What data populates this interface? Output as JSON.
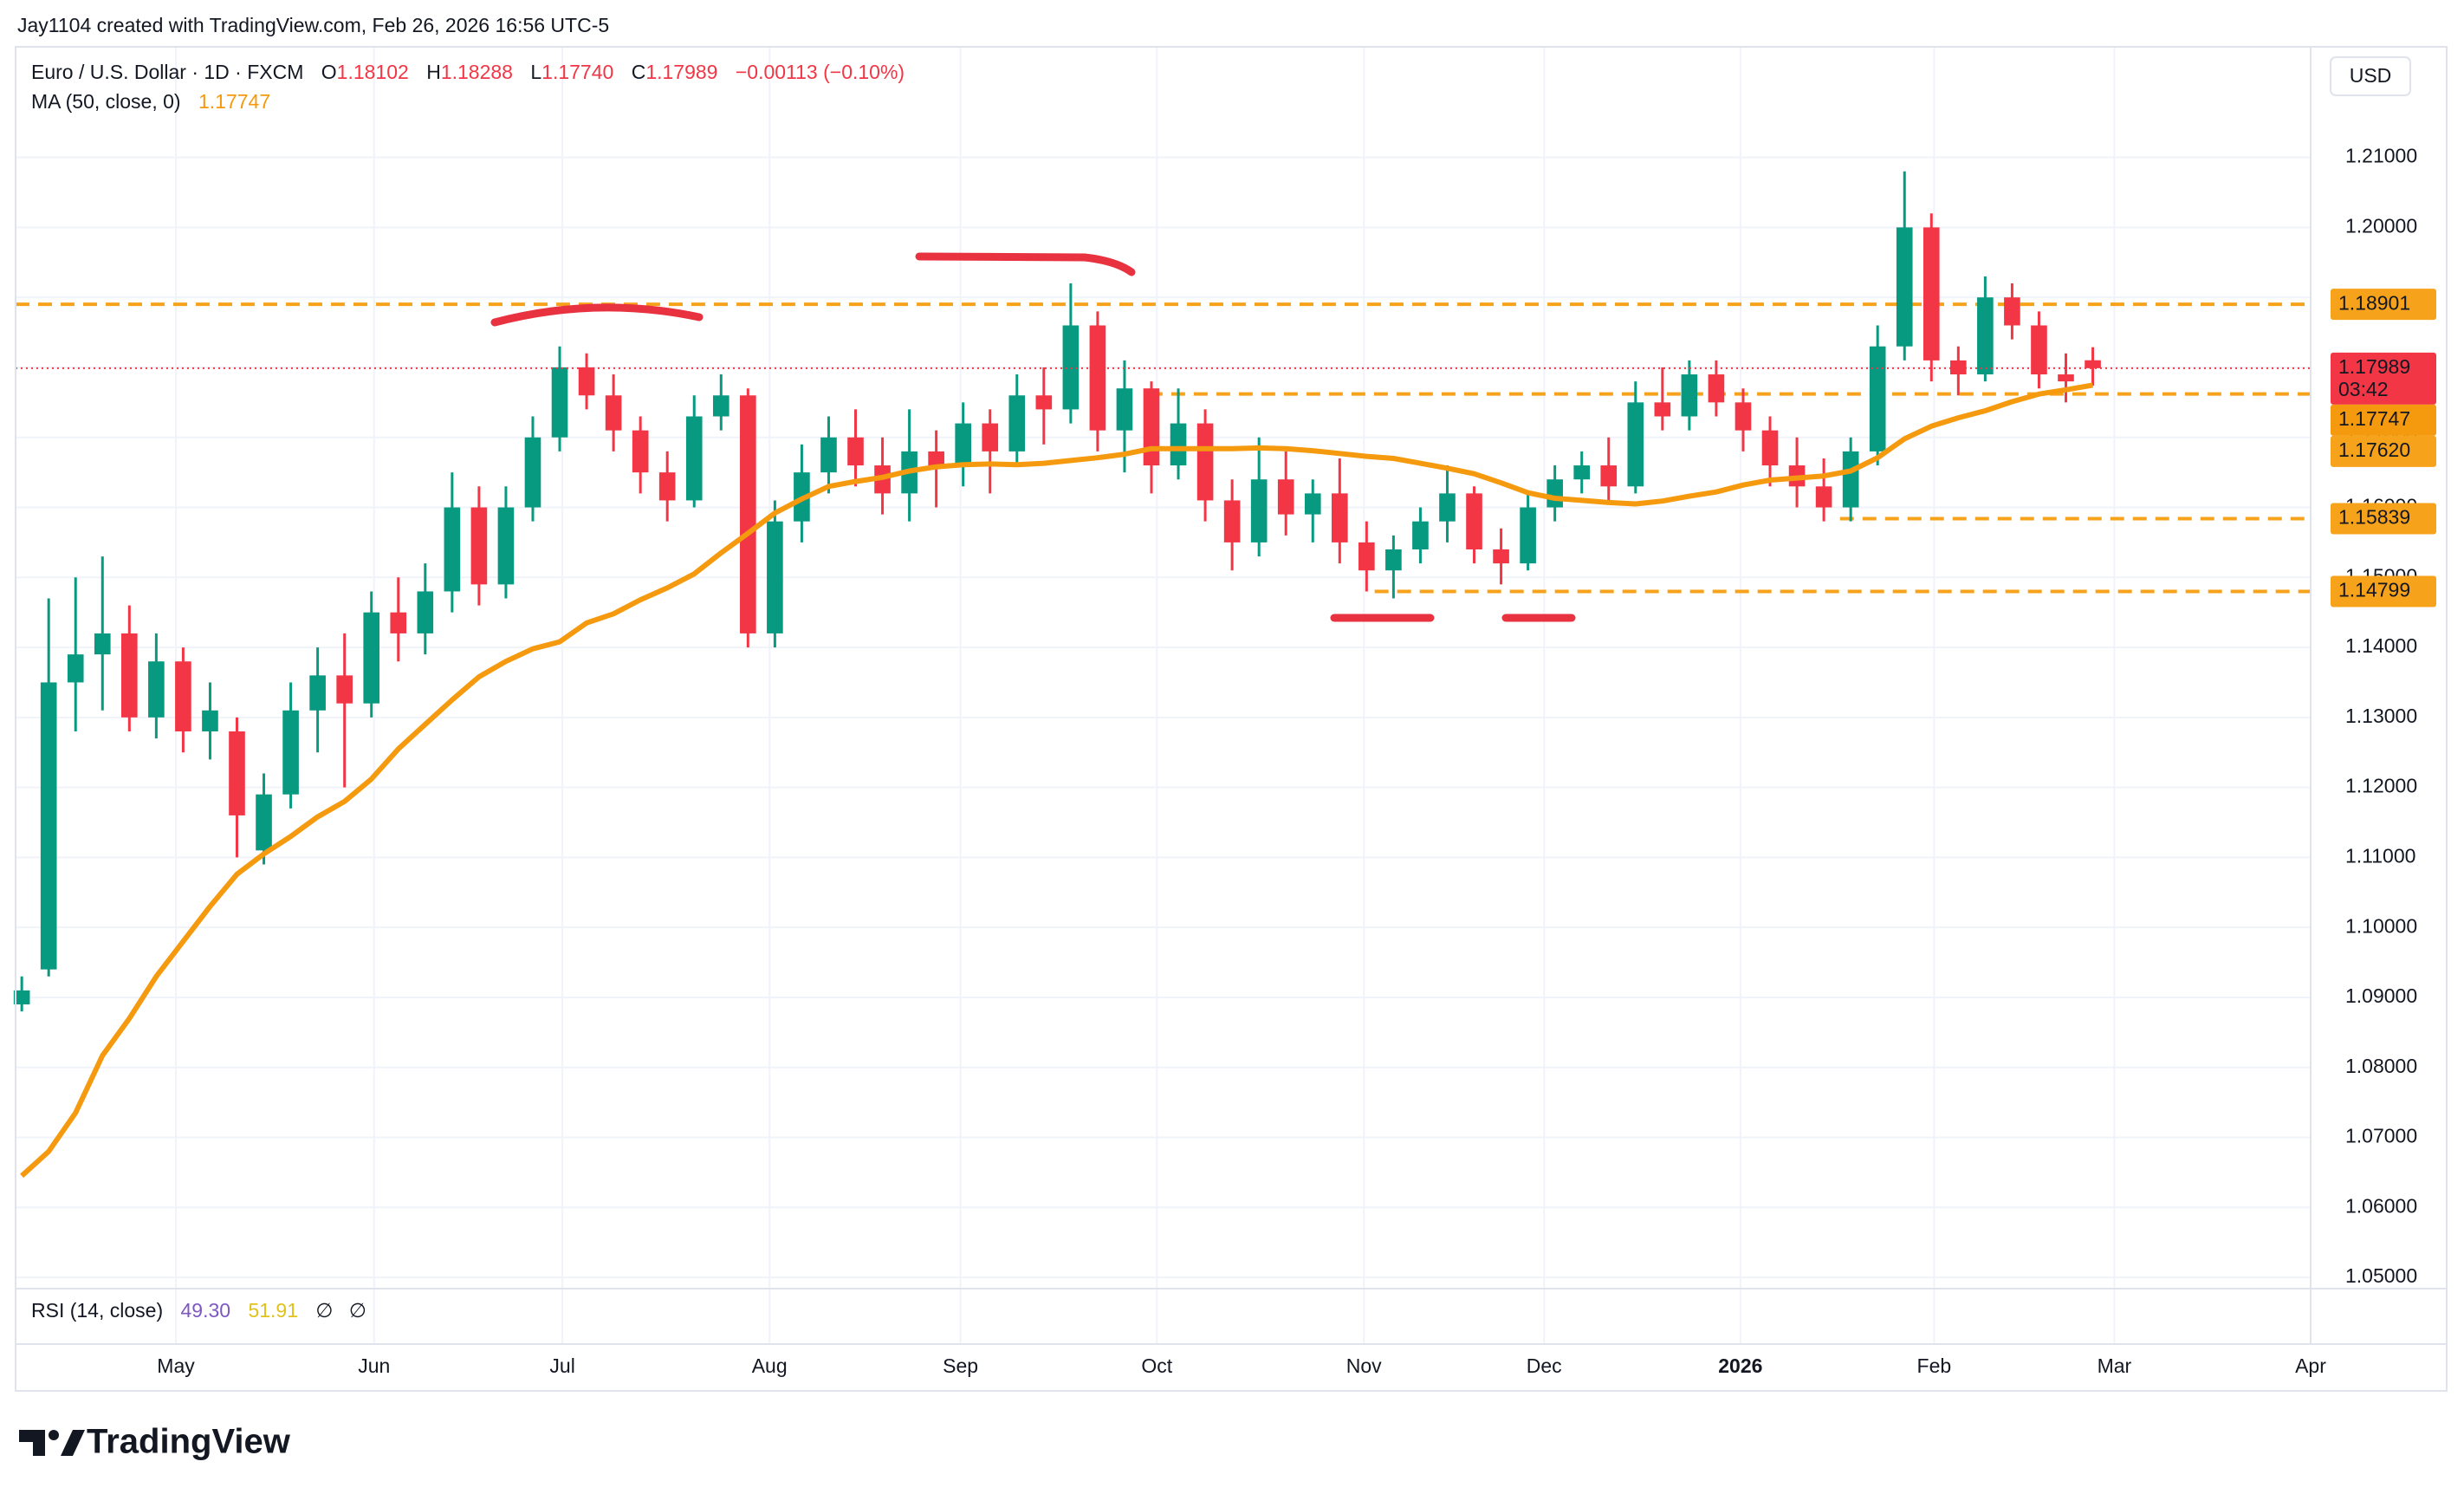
{
  "header": {
    "attribution": "Jay1104 created with TradingView.com, Feb 26, 2026 16:56 UTC-5",
    "symbol": "Euro / U.S. Dollar · 1D · FXCM",
    "ohlc": [
      {
        "key": "O",
        "value": "1.18102"
      },
      {
        "key": "H",
        "value": "1.18288"
      },
      {
        "key": "L",
        "value": "1.17740"
      },
      {
        "key": "C",
        "value": "1.17989"
      }
    ],
    "change": "−0.00113 (−0.10%)",
    "ma_label": "MA (50, close, 0)",
    "rsi_label": "RSI (14, close)",
    "rsi_values": [
      "49.30",
      "51.91"
    ],
    "rsi_flags": [
      "∅",
      "∅"
    ],
    "currency": "USD",
    "countdown": "03:42",
    "logo": "TradingView"
  },
  "chart_data": {
    "type": "candlestick",
    "up_color": "#089981",
    "down_color": "#f23645",
    "open": [
      1.089,
      1.094,
      1.135,
      1.139,
      1.142,
      1.13,
      1.138,
      1.128,
      1.128,
      1.111,
      1.119,
      1.131,
      1.136,
      1.132,
      1.145,
      1.142,
      1.148,
      1.16,
      1.149,
      1.16,
      1.17,
      1.18,
      1.176,
      1.171,
      1.165,
      1.161,
      1.173,
      1.176,
      1.142,
      1.158,
      1.165,
      1.17,
      1.166,
      1.162,
      1.168,
      1.166,
      1.172,
      1.168,
      1.176,
      1.174,
      1.186,
      1.171,
      1.177,
      1.166,
      1.172,
      1.161,
      1.155,
      1.164,
      1.159,
      1.162,
      1.155,
      1.151,
      1.154,
      1.158,
      1.162,
      1.154,
      1.152,
      1.16,
      1.164,
      1.166,
      1.163,
      1.175,
      1.173,
      1.179,
      1.175,
      1.171,
      1.166,
      1.163,
      1.16,
      1.168,
      1.183,
      1.2,
      1.181,
      1.179,
      1.19,
      1.186,
      1.179,
      1.18102
    ],
    "high": [
      1.093,
      1.147,
      1.15,
      1.153,
      1.146,
      1.142,
      1.14,
      1.135,
      1.13,
      1.122,
      1.135,
      1.14,
      1.142,
      1.148,
      1.15,
      1.152,
      1.165,
      1.163,
      1.163,
      1.173,
      1.183,
      1.182,
      1.179,
      1.173,
      1.168,
      1.176,
      1.179,
      1.177,
      1.161,
      1.169,
      1.173,
      1.174,
      1.17,
      1.174,
      1.171,
      1.175,
      1.174,
      1.179,
      1.18,
      1.192,
      1.188,
      1.181,
      1.178,
      1.177,
      1.174,
      1.164,
      1.17,
      1.168,
      1.164,
      1.167,
      1.158,
      1.156,
      1.16,
      1.166,
      1.163,
      1.157,
      1.162,
      1.166,
      1.168,
      1.17,
      1.178,
      1.18,
      1.181,
      1.181,
      1.177,
      1.173,
      1.17,
      1.167,
      1.17,
      1.186,
      1.208,
      1.202,
      1.183,
      1.193,
      1.192,
      1.188,
      1.182,
      1.18288
    ],
    "low": [
      1.088,
      1.093,
      1.128,
      1.131,
      1.128,
      1.127,
      1.125,
      1.124,
      1.11,
      1.109,
      1.117,
      1.125,
      1.12,
      1.13,
      1.138,
      1.139,
      1.145,
      1.146,
      1.147,
      1.158,
      1.168,
      1.174,
      1.168,
      1.162,
      1.158,
      1.16,
      1.171,
      1.14,
      1.14,
      1.155,
      1.162,
      1.163,
      1.159,
      1.158,
      1.16,
      1.163,
      1.162,
      1.166,
      1.169,
      1.172,
      1.168,
      1.165,
      1.162,
      1.164,
      1.158,
      1.151,
      1.153,
      1.156,
      1.155,
      1.152,
      1.148,
      1.147,
      1.152,
      1.155,
      1.152,
      1.149,
      1.151,
      1.158,
      1.162,
      1.161,
      1.162,
      1.171,
      1.171,
      1.173,
      1.168,
      1.163,
      1.16,
      1.158,
      1.158,
      1.166,
      1.181,
      1.178,
      1.176,
      1.178,
      1.184,
      1.177,
      1.175,
      1.1774
    ],
    "close": [
      1.091,
      1.135,
      1.139,
      1.142,
      1.13,
      1.138,
      1.128,
      1.131,
      1.116,
      1.119,
      1.131,
      1.136,
      1.132,
      1.145,
      1.142,
      1.148,
      1.16,
      1.149,
      1.16,
      1.17,
      1.18,
      1.176,
      1.171,
      1.165,
      1.161,
      1.173,
      1.176,
      1.142,
      1.158,
      1.165,
      1.17,
      1.166,
      1.162,
      1.168,
      1.166,
      1.172,
      1.168,
      1.176,
      1.174,
      1.186,
      1.171,
      1.177,
      1.166,
      1.172,
      1.161,
      1.155,
      1.164,
      1.159,
      1.162,
      1.155,
      1.151,
      1.154,
      1.158,
      1.162,
      1.154,
      1.152,
      1.16,
      1.164,
      1.166,
      1.163,
      1.175,
      1.173,
      1.179,
      1.175,
      1.171,
      1.166,
      1.163,
      1.16,
      1.168,
      1.183,
      1.2,
      1.181,
      1.179,
      1.19,
      1.186,
      1.179,
      1.178,
      1.17989
    ],
    "ma": {
      "color": "#f59a0e",
      "values": [
        1.0645,
        1.068,
        1.0735,
        1.0817,
        1.087,
        1.093,
        1.098,
        1.103,
        1.1076,
        1.1105,
        1.113,
        1.1158,
        1.118,
        1.1212,
        1.1255,
        1.129,
        1.1325,
        1.1358,
        1.138,
        1.1398,
        1.1408,
        1.1435,
        1.1448,
        1.1468,
        1.1485,
        1.1505,
        1.1535,
        1.1563,
        1.1592,
        1.1612,
        1.163,
        1.1637,
        1.1643,
        1.1652,
        1.1658,
        1.1661,
        1.1662,
        1.1661,
        1.1663,
        1.1667,
        1.1671,
        1.1676,
        1.1684,
        1.1684,
        1.1684,
        1.1684,
        1.1685,
        1.1684,
        1.1681,
        1.1677,
        1.1673,
        1.167,
        1.1663,
        1.1656,
        1.1648,
        1.1635,
        1.1621,
        1.1613,
        1.161,
        1.1607,
        1.1605,
        1.1609,
        1.1616,
        1.1622,
        1.1632,
        1.1639,
        1.1642,
        1.1645,
        1.1652,
        1.1671,
        1.1698,
        1.1716,
        1.1728,
        1.1738,
        1.1751,
        1.1762,
        1.1768,
        1.17747
      ]
    },
    "levels": [
      {
        "value": 1.18901,
        "label": "1.18901",
        "from": -0.23
      },
      {
        "value": 1.1762,
        "label": "1.17620",
        "from": 41.9
      },
      {
        "value": 1.15839,
        "label": "1.15839",
        "from": 67.6
      },
      {
        "value": 1.14799,
        "label": "1.14799",
        "from": 50.3
      }
    ],
    "level_color": "#f7a21b",
    "ylim": [
      1.0484,
      1.2258
    ],
    "yticks": [
      {
        "value": 1.05,
        "label": "1.05000"
      },
      {
        "value": 1.06,
        "label": "1.06000"
      },
      {
        "value": 1.07,
        "label": "1.07000"
      },
      {
        "value": 1.08,
        "label": "1.08000"
      },
      {
        "value": 1.09,
        "label": "1.09000"
      },
      {
        "value": 1.1,
        "label": "1.10000"
      },
      {
        "value": 1.11,
        "label": "1.11000"
      },
      {
        "value": 1.12,
        "label": "1.12000"
      },
      {
        "value": 1.13,
        "label": "1.13000"
      },
      {
        "value": 1.14,
        "label": "1.14000"
      },
      {
        "value": 1.15,
        "label": "1.15000"
      },
      {
        "value": 1.16,
        "label": "1.16000"
      },
      {
        "value": 1.17,
        "label": "1.17000"
      },
      {
        "value": 1.18,
        "label": "1.18000"
      },
      {
        "value": 1.19,
        "label": "1.19000"
      },
      {
        "value": 1.2,
        "label": "1.20000"
      },
      {
        "value": 1.21,
        "label": "1.21000"
      }
    ],
    "xlim": [
      -0.23,
      85.1
    ],
    "xticks": [
      {
        "value": 5.73,
        "label": "May"
      },
      {
        "value": 13.1,
        "label": "Jun"
      },
      {
        "value": 20.1,
        "label": "Jul"
      },
      {
        "value": 27.8,
        "label": "Aug"
      },
      {
        "value": 34.9,
        "label": "Sep"
      },
      {
        "value": 42.2,
        "label": "Oct"
      },
      {
        "value": 49.9,
        "label": "Nov"
      },
      {
        "value": 56.6,
        "label": "Dec"
      },
      {
        "value": 63.9,
        "label": "2026"
      },
      {
        "value": 71.1,
        "label": "Feb"
      },
      {
        "value": 77.8,
        "label": "Mar"
      },
      {
        "value": 85.1,
        "label": "Apr"
      }
    ],
    "grid": true
  }
}
